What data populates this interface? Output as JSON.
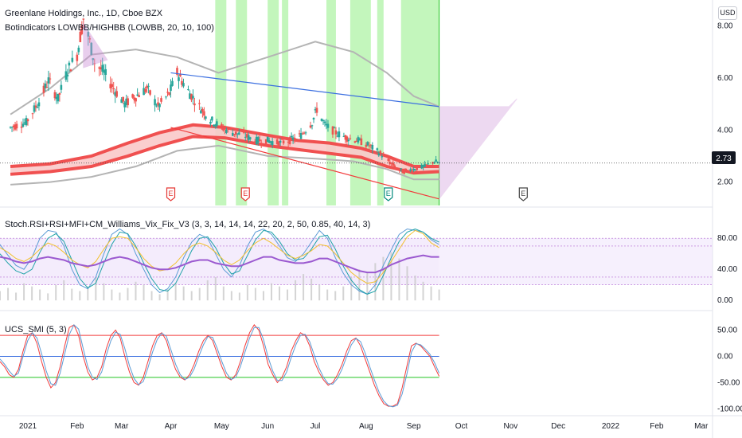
{
  "header": {
    "title": "Greenlane Holdings, Inc., 1D, Cboe BZX",
    "indicator": "Botindicators LOWBB/HIGHBB (LOWBB, 20, 10, 100)",
    "currency_button": "USD"
  },
  "price_last_label": "2.73",
  "colors": {
    "candle_up": "#26a69a",
    "candle_down": "#ef5350",
    "band_red": "#f05050",
    "band_fill": "#f9c9c9",
    "gray_band": "#b4b4b4",
    "trend_blue": "#3b6fe0",
    "trend_red": "#f23b3b",
    "highlight_green": "#b9f4b0",
    "vline_green": "#21c521",
    "projection": "#ce93d8",
    "earnings_red": "#e53935",
    "earnings_teal": "#00897b",
    "earnings_gray": "#444444"
  },
  "earnings_markers": [
    {
      "label": "E",
      "date": "2021-04-01",
      "style": "red"
    },
    {
      "label": "E",
      "date": "2021-05-18",
      "style": "red"
    },
    {
      "label": "E",
      "date": "2021-08-16",
      "style": "teal"
    },
    {
      "label": "E",
      "date": "2021-11-09",
      "style": "gray"
    }
  ],
  "x_axis": {
    "ticks": [
      {
        "label": "2021",
        "date": "2021-01-01"
      },
      {
        "label": "Feb",
        "date": "2021-02-01"
      },
      {
        "label": "Mar",
        "date": "2021-03-01"
      },
      {
        "label": "Apr",
        "date": "2021-04-01"
      },
      {
        "label": "May",
        "date": "2021-05-03"
      },
      {
        "label": "Jun",
        "date": "2021-06-01"
      },
      {
        "label": "Jul",
        "date": "2021-07-01"
      },
      {
        "label": "Aug",
        "date": "2021-08-02"
      },
      {
        "label": "Sep",
        "date": "2021-09-01"
      },
      {
        "label": "Oct",
        "date": "2021-10-01"
      },
      {
        "label": "Nov",
        "date": "2021-11-01"
      },
      {
        "label": "Dec",
        "date": "2021-12-01"
      },
      {
        "label": "2022",
        "date": "2022-01-03"
      },
      {
        "label": "Feb",
        "date": "2022-02-01"
      },
      {
        "label": "Mar",
        "date": "2022-03-01"
      }
    ]
  },
  "chart_data": [
    {
      "type": "candlestick",
      "title": "Greenlane Holdings, Inc., 1D, Cboe BZX",
      "ylim": [
        1.1,
        9.0
      ],
      "y_ticks": [
        "8.00",
        "6.00",
        "4.00",
        "2.00"
      ],
      "y_tick_values": [
        8,
        6,
        4,
        2
      ],
      "last_price": 2.73,
      "close_series": {
        "dates": [
          "2020-12-21",
          "2020-12-31",
          "2021-01-08",
          "2021-01-14",
          "2021-01-20",
          "2021-01-26",
          "2021-02-01",
          "2021-02-05",
          "2021-02-09",
          "2021-02-12",
          "2021-02-18",
          "2021-02-24",
          "2021-03-03",
          "2021-03-10",
          "2021-03-17",
          "2021-03-24",
          "2021-03-31",
          "2021-04-05",
          "2021-04-12",
          "2021-04-19",
          "2021-04-26",
          "2021-05-03",
          "2021-05-10",
          "2021-05-17",
          "2021-05-24",
          "2021-06-01",
          "2021-06-08",
          "2021-06-15",
          "2021-06-22",
          "2021-06-29",
          "2021-07-02",
          "2021-07-07",
          "2021-07-14",
          "2021-07-21",
          "2021-07-28",
          "2021-08-04",
          "2021-08-11",
          "2021-08-18",
          "2021-08-25",
          "2021-09-01",
          "2021-09-08",
          "2021-09-14",
          "2021-09-17"
        ],
        "values": [
          4.1,
          4.3,
          5.1,
          5.9,
          5.2,
          6.3,
          6.9,
          8.3,
          7.4,
          6.6,
          6.2,
          5.6,
          5.0,
          5.3,
          5.6,
          4.9,
          5.4,
          6.2,
          5.5,
          4.9,
          4.4,
          4.1,
          3.9,
          3.8,
          3.6,
          3.6,
          3.5,
          3.6,
          3.8,
          4.3,
          4.8,
          4.2,
          3.9,
          3.7,
          3.6,
          3.4,
          3.1,
          2.7,
          2.4,
          2.5,
          2.6,
          2.8,
          2.73
        ]
      },
      "lowbb_band": {
        "dates": [
          "2020-12-21",
          "2021-01-15",
          "2021-02-10",
          "2021-03-05",
          "2021-03-25",
          "2021-04-15",
          "2021-05-05",
          "2021-06-01",
          "2021-06-20",
          "2021-07-10",
          "2021-07-30",
          "2021-08-15",
          "2021-09-01",
          "2021-09-17"
        ],
        "upper": [
          2.6,
          2.7,
          3.0,
          3.5,
          3.9,
          4.2,
          4.1,
          3.8,
          3.6,
          3.5,
          3.3,
          3.0,
          2.6,
          2.6
        ],
        "lower": [
          2.3,
          2.4,
          2.6,
          3.0,
          3.4,
          3.75,
          3.7,
          3.4,
          3.25,
          3.1,
          2.95,
          2.6,
          2.35,
          2.4
        ]
      },
      "highbb_band": {
        "dates": [
          "2020-12-21",
          "2021-01-15",
          "2021-02-10",
          "2021-03-10",
          "2021-04-05",
          "2021-05-01",
          "2021-06-01",
          "2021-07-01",
          "2021-07-25",
          "2021-08-15",
          "2021-09-01",
          "2021-09-17"
        ],
        "upper": [
          4.6,
          5.6,
          6.9,
          7.1,
          6.8,
          6.2,
          6.8,
          7.4,
          7.0,
          6.2,
          5.3,
          4.9
        ],
        "lower": [
          1.9,
          2.0,
          2.2,
          2.6,
          3.2,
          3.4,
          3.0,
          2.9,
          2.8,
          2.5,
          2.1,
          2.1
        ]
      },
      "trendlines": [
        {
          "color": "blue",
          "from": [
            "2021-04-01",
            6.2
          ],
          "to": [
            "2021-09-17",
            4.9
          ]
        },
        {
          "color": "red",
          "from": [
            "2021-04-01",
            4.1
          ],
          "to": [
            "2021-09-17",
            1.35
          ]
        }
      ],
      "projection": {
        "points": [
          [
            "2021-09-17",
            1.35
          ],
          [
            "2021-09-17",
            4.9
          ],
          [
            "2021-10-31",
            4.9
          ],
          [
            "2021-11-05",
            5.2
          ]
        ]
      },
      "highlight_zones": [
        [
          "2021-04-29",
          "2021-05-06"
        ],
        [
          "2021-05-12",
          "2021-05-19"
        ],
        [
          "2021-06-01",
          "2021-06-08"
        ],
        [
          "2021-06-10",
          "2021-06-14"
        ],
        [
          "2021-07-08",
          "2021-07-14"
        ],
        [
          "2021-07-23",
          "2021-08-05"
        ],
        [
          "2021-08-09",
          "2021-08-13"
        ],
        [
          "2021-08-24",
          "2021-09-17"
        ]
      ]
    },
    {
      "type": "line",
      "title": "Stoch.RSI+RSI+MFI+CM_Williams_Vix_Fix_V3 (3, 3, 14, 14, 14, 22, 20, 2, 50, 0.85, 40, 14, 3)",
      "ylim": [
        -8,
        112
      ],
      "y_ticks": [
        "80.00",
        "40.00",
        "0.00"
      ],
      "y_tick_values": [
        80,
        40,
        0
      ],
      "band_levels": [
        80,
        70,
        30,
        20
      ],
      "series": [
        {
          "color": "#5b9bd5",
          "values": [
            72,
            58,
            45,
            40,
            55,
            80,
            90,
            88,
            70,
            40,
            20,
            15,
            30,
            60,
            85,
            92,
            85,
            60,
            40,
            20,
            10,
            15,
            30,
            55,
            75,
            85,
            80,
            60,
            40,
            30,
            45,
            70,
            88,
            92,
            85,
            70,
            55,
            50,
            60,
            75,
            90,
            80,
            55,
            35,
            20,
            12,
            8,
            20,
            45,
            65,
            85,
            92,
            90,
            88,
            78,
            72
          ]
        },
        {
          "color": "#1fa3a8",
          "values": [
            60,
            48,
            38,
            34,
            40,
            62,
            80,
            86,
            76,
            52,
            28,
            16,
            22,
            48,
            72,
            88,
            86,
            70,
            48,
            28,
            14,
            12,
            22,
            42,
            64,
            80,
            82,
            68,
            48,
            34,
            38,
            58,
            78,
            90,
            88,
            76,
            60,
            52,
            54,
            66,
            82,
            84,
            66,
            44,
            26,
            14,
            8,
            12,
            32,
            55,
            76,
            88,
            92,
            88,
            80,
            75
          ]
        },
        {
          "color": "#f2c12e",
          "values": [
            68,
            62,
            54,
            50,
            56,
            66,
            74,
            70,
            62,
            52,
            46,
            42,
            50,
            66,
            80,
            82,
            80,
            68,
            54,
            44,
            38,
            40,
            48,
            60,
            70,
            74,
            70,
            62,
            52,
            46,
            52,
            64,
            74,
            80,
            74,
            66,
            58,
            54,
            58,
            64,
            72,
            70,
            60,
            48,
            36,
            28,
            22,
            24,
            36,
            50,
            66,
            82,
            90,
            86,
            74,
            68
          ]
        },
        {
          "color": "#9b59d0",
          "values": [
            56,
            54,
            50,
            48,
            50,
            54,
            56,
            54,
            52,
            48,
            46,
            44,
            46,
            50,
            54,
            56,
            54,
            50,
            46,
            42,
            40,
            40,
            42,
            46,
            50,
            52,
            52,
            48,
            46,
            44,
            44,
            48,
            52,
            56,
            56,
            52,
            50,
            48,
            48,
            50,
            54,
            54,
            50,
            46,
            42,
            38,
            36,
            36,
            40,
            46,
            50,
            54,
            56,
            58,
            56,
            56
          ]
        }
      ],
      "histogram": [
        12,
        16,
        10,
        22,
        18,
        14,
        9,
        20,
        26,
        15,
        12,
        18,
        30,
        22,
        14,
        10,
        16,
        24,
        20,
        12,
        8,
        14,
        22,
        18,
        12,
        16,
        26,
        30,
        18,
        12,
        10,
        20,
        16,
        12,
        22,
        18,
        14,
        26,
        34,
        28,
        20,
        14,
        12,
        18,
        30,
        40,
        36,
        48,
        56,
        62,
        54,
        44,
        32,
        24,
        18,
        14
      ]
    },
    {
      "type": "line",
      "title": "UCS_SMI (5, 3)",
      "ylim": [
        -110,
        75
      ],
      "y_ticks": [
        "50.00",
        "0.00",
        "-50.00",
        "-100.00"
      ],
      "y_tick_values": [
        50,
        0,
        -50,
        -100
      ],
      "levels": [
        {
          "value": 40,
          "color": "#f23b3b"
        },
        {
          "value": 0,
          "color": "#3b6fe0"
        },
        {
          "value": -40,
          "color": "#21c521"
        }
      ],
      "series": [
        {
          "color": "#f23b3b",
          "values": [
            -10,
            -20,
            -35,
            -40,
            -25,
            10,
            40,
            45,
            25,
            -10,
            -40,
            -60,
            -50,
            -20,
            20,
            55,
            60,
            40,
            0,
            -30,
            -45,
            -40,
            -20,
            15,
            40,
            50,
            35,
            0,
            -30,
            -50,
            -55,
            -40,
            -10,
            20,
            40,
            45,
            30,
            0,
            -25,
            -40,
            -45,
            -35,
            -15,
            10,
            30,
            40,
            30,
            5,
            -20,
            -40,
            -45,
            -35,
            -10,
            20,
            45,
            60,
            50,
            20,
            -15,
            -35,
            -50,
            -40,
            -20,
            10,
            30,
            45,
            40,
            20,
            -10,
            -30,
            -45,
            -55,
            -50,
            -35,
            -15,
            10,
            30,
            35,
            20,
            -5,
            -30,
            -55,
            -75,
            -90,
            -95,
            -95,
            -90,
            -60,
            -20,
            20,
            25,
            20,
            10,
            0,
            -20,
            -38
          ]
        },
        {
          "color": "#5b9bd5",
          "values": [
            -5,
            -15,
            -28,
            -38,
            -32,
            0,
            30,
            45,
            35,
            5,
            -28,
            -52,
            -55,
            -32,
            5,
            42,
            60,
            52,
            15,
            -20,
            -40,
            -44,
            -30,
            2,
            30,
            46,
            42,
            15,
            -18,
            -42,
            -54,
            -48,
            -22,
            8,
            32,
            44,
            38,
            12,
            -15,
            -35,
            -44,
            -40,
            -24,
            0,
            22,
            38,
            36,
            15,
            -10,
            -32,
            -44,
            -40,
            -20,
            8,
            35,
            55,
            55,
            32,
            -2,
            -28,
            -46,
            -46,
            -30,
            -2,
            22,
            40,
            42,
            28,
            2,
            -22,
            -40,
            -52,
            -53,
            -42,
            -24,
            0,
            22,
            34,
            28,
            6,
            -20,
            -45,
            -68,
            -85,
            -94,
            -96,
            -93,
            -72,
            -35,
            8,
            24,
            22,
            14,
            4,
            -12,
            -32
          ]
        }
      ]
    }
  ]
}
